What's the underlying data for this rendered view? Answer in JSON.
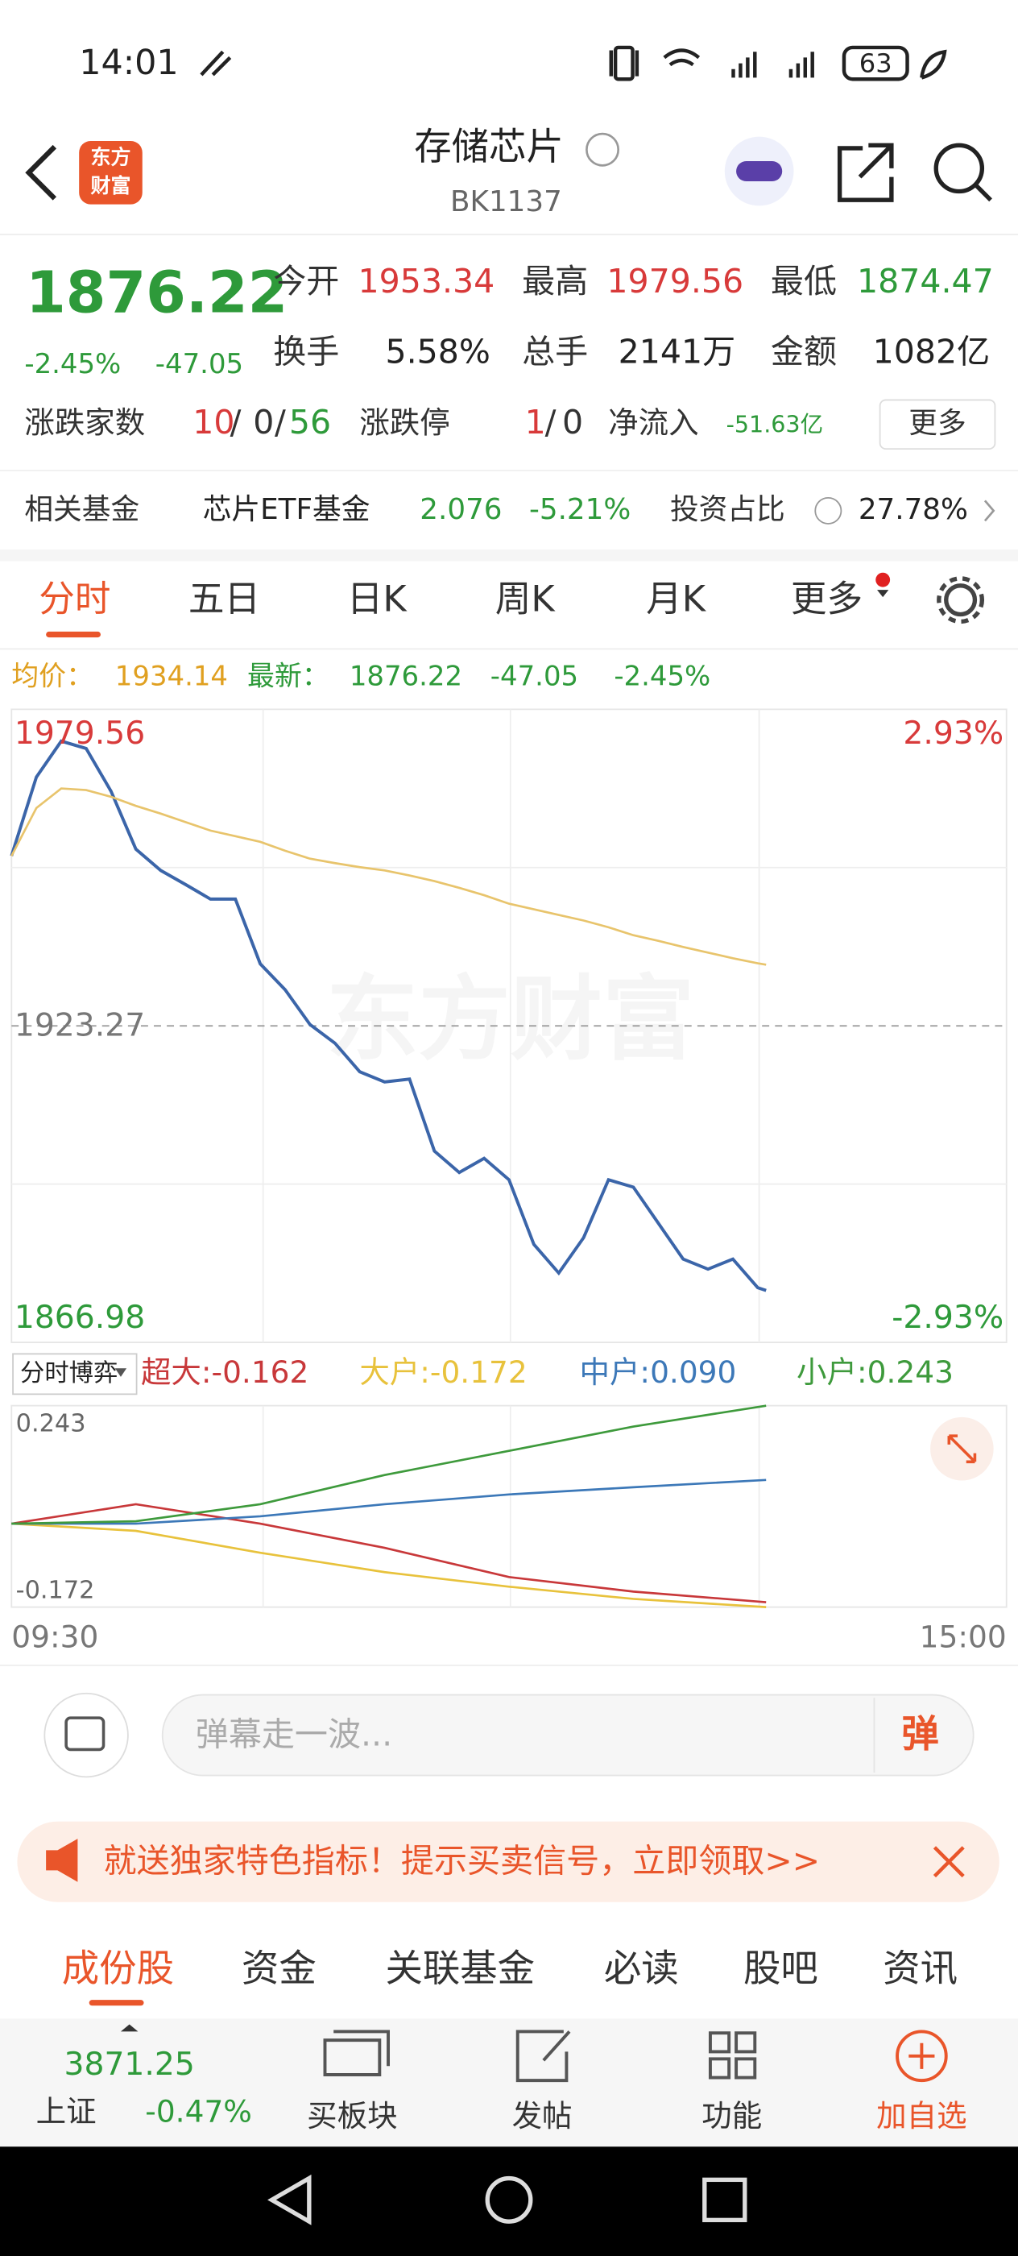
{
  "status_bar": {
    "time": "14:01",
    "battery": "63"
  },
  "header": {
    "logo": [
      "东方",
      "财富"
    ],
    "title": "存储芯片",
    "code": "BK1137"
  },
  "quote": {
    "price": "1876.22",
    "change_pct": "-2.45%",
    "change": "-47.05",
    "stats": [
      {
        "label": "今开",
        "value": "1953.34"
      },
      {
        "label": "最高",
        "value": "1979.56"
      },
      {
        "label": "最低",
        "value": "1874.47"
      },
      {
        "label": "换手",
        "value": "5.58%"
      },
      {
        "label": "总手",
        "value": "2141万"
      },
      {
        "label": "金额",
        "value": "1082亿"
      }
    ],
    "breadth": {
      "label": "涨跌家数",
      "up": "10",
      "flat": "0",
      "down": "56",
      "sep": "/"
    },
    "limit": {
      "label": "涨跌停",
      "up": "1",
      "down": "0"
    },
    "net_flow": {
      "label": "净流入",
      "value": "-51.63亿"
    },
    "more": "更多"
  },
  "fund": {
    "label": "相关基金",
    "name": "芯片ETF基金",
    "price": "2.076",
    "change": "-5.21%",
    "ratio_label": "投资占比",
    "ratio": "27.78%"
  },
  "tabs": [
    "分时",
    "五日",
    "日K",
    "周K",
    "月K",
    "更多"
  ],
  "legend": {
    "avg_label": "均价：",
    "avg": "1934.14",
    "last_label": "最新：",
    "last": "1876.22",
    "change": "-47.05",
    "change_pct": "-2.45%"
  },
  "price_chart": {
    "type": "line",
    "x": [
      0,
      6,
      12,
      18,
      24,
      30,
      36,
      42,
      48,
      54,
      60,
      66,
      72,
      78,
      84,
      90,
      96,
      102,
      108,
      114,
      120,
      126,
      132,
      138,
      144,
      150,
      156,
      162,
      168,
      174,
      180,
      182
    ],
    "xlim": [
      0,
      240
    ],
    "ylim": [
      1866.98,
      1979.56
    ],
    "yticks": [
      1979.56,
      1923.27,
      1866.98
    ],
    "right_labels": [
      "2.93%",
      "-2.93%"
    ],
    "series": [
      {
        "name": "最新",
        "color": "#3b65a9",
        "values": [
          1953.5,
          1967.5,
          1973.9,
          1972.6,
          1965.0,
          1954.7,
          1950.9,
          1948.4,
          1945.8,
          1945.8,
          1934.3,
          1929.7,
          1923.5,
          1920.2,
          1915.1,
          1913.3,
          1913.8,
          1901.0,
          1897.2,
          1899.7,
          1895.9,
          1884.4,
          1879.3,
          1885.6,
          1895.9,
          1894.6,
          1888.2,
          1881.8,
          1880.0,
          1881.8,
          1876.7,
          1876.22
        ]
      },
      {
        "name": "均价",
        "color": "#e8c46c",
        "values": [
          1953.5,
          1962.0,
          1965.5,
          1965.2,
          1964.0,
          1962.4,
          1961.0,
          1959.5,
          1958.0,
          1957.0,
          1956.0,
          1954.4,
          1953.0,
          1952.2,
          1951.5,
          1950.9,
          1950.0,
          1949.0,
          1947.8,
          1946.5,
          1945.0,
          1944.0,
          1943.0,
          1942.0,
          1940.8,
          1939.4,
          1938.4,
          1937.3,
          1936.3,
          1935.3,
          1934.4,
          1934.14
        ]
      }
    ]
  },
  "flow_chart": {
    "type": "line",
    "selector": "分时博弈",
    "x": [
      0,
      30,
      60,
      90,
      120,
      150,
      182
    ],
    "xlim": [
      0,
      240
    ],
    "ylim": [
      -0.172,
      0.243
    ],
    "yticks": [
      0.243,
      -0.172
    ],
    "xticks": [
      {
        "value": 0,
        "label": "09:30"
      },
      {
        "value": 240,
        "label": "15:00"
      }
    ],
    "series": [
      {
        "name": "超大:",
        "current": "-0.162",
        "color": "#c8383a",
        "values": [
          0,
          0.04,
          0,
          -0.05,
          -0.11,
          -0.14,
          -0.162
        ]
      },
      {
        "name": "大户:",
        "current": "-0.172",
        "color": "#e8c23c",
        "values": [
          0,
          -0.015,
          -0.06,
          -0.1,
          -0.13,
          -0.155,
          -0.172
        ]
      },
      {
        "name": "中户:",
        "current": "0.090",
        "color": "#3c78b8",
        "values": [
          0,
          0,
          0.015,
          0.04,
          0.06,
          0.075,
          0.09
        ]
      },
      {
        "name": "小户:",
        "current": "0.243",
        "color": "#3e9a3c",
        "values": [
          0,
          0.005,
          0.04,
          0.1,
          0.15,
          0.2,
          0.243
        ]
      }
    ]
  },
  "watermark": "东方财富",
  "danmu": {
    "placeholder": "弹幕走一波...",
    "button": "弹"
  },
  "banner": "就送独家特色指标！提示买卖信号，立即领取>>",
  "bottom_tabs": [
    "成份股",
    "资金",
    "关联基金",
    "必读",
    "股吧",
    "资讯"
  ],
  "footer": {
    "index_value": "3871.25",
    "index_name": "上证",
    "index_change": "-0.47%",
    "items": [
      "买板块",
      "发帖",
      "功能",
      "加自选"
    ]
  }
}
